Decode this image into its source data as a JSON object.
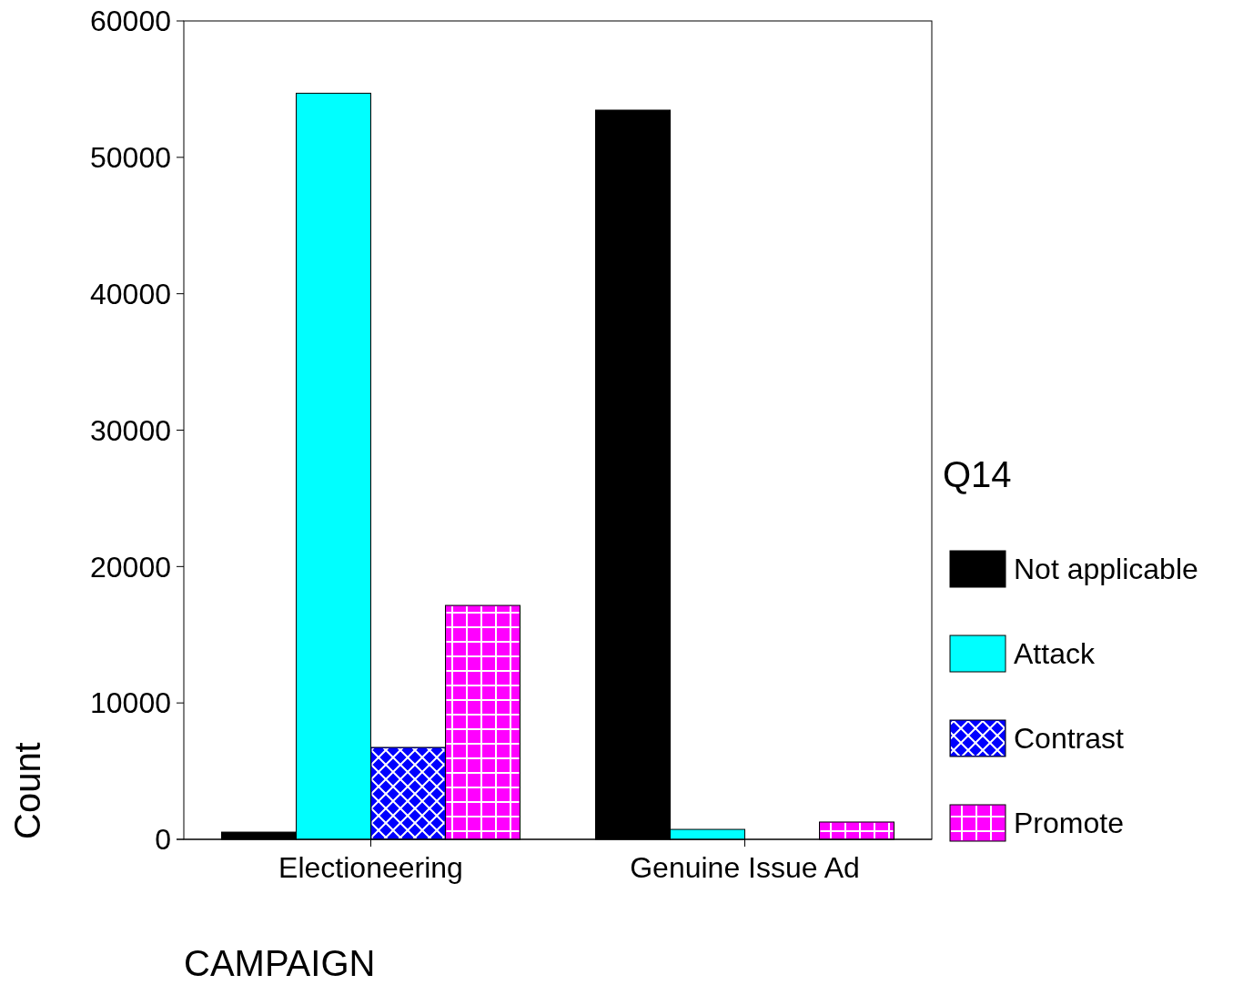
{
  "chart_data": {
    "type": "bar",
    "xlabel": "CAMPAIGN",
    "ylabel": "Count",
    "legend_title": "Q14",
    "legend": "right",
    "categories": [
      "Electioneering",
      "Genuine Issue Ad"
    ],
    "series": [
      {
        "name": "Not applicable",
        "color": "#000000",
        "values": [
          530,
          53460
        ]
      },
      {
        "name": "Attack",
        "color": "#00ffff",
        "values": [
          54700,
          730
        ]
      },
      {
        "name": "Contrast",
        "color": "#0000ff",
        "values": [
          6740,
          0
        ]
      },
      {
        "name": "Promote",
        "color": "#ff00ff",
        "values": [
          17150,
          1270
        ]
      }
    ],
    "ylim": [
      0,
      60000
    ],
    "yticks": [
      0,
      10000,
      20000,
      30000,
      40000,
      50000,
      60000
    ]
  }
}
